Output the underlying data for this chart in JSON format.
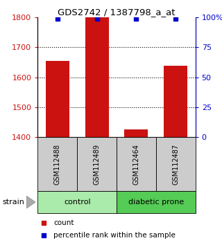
{
  "title": "GDS2742 / 1387798_a_at",
  "samples": [
    "GSM112488",
    "GSM112489",
    "GSM112464",
    "GSM112487"
  ],
  "counts": [
    1655,
    1800,
    1425,
    1638
  ],
  "percentiles": [
    99,
    99,
    99,
    99
  ],
  "ylim_left": [
    1400,
    1800
  ],
  "ylim_right": [
    0,
    100
  ],
  "yticks_left": [
    1400,
    1500,
    1600,
    1700,
    1800
  ],
  "yticks_right": [
    0,
    25,
    50,
    75,
    100
  ],
  "ytick_labels_right": [
    "0",
    "25",
    "50",
    "75",
    "100%"
  ],
  "bar_color": "#cc1111",
  "percentile_color": "#0000cc",
  "groups": [
    {
      "label": "control",
      "indices": [
        0,
        1
      ],
      "color": "#aaeaaa"
    },
    {
      "label": "diabetic prone",
      "indices": [
        2,
        3
      ],
      "color": "#55cc55"
    }
  ],
  "strain_label": "strain",
  "legend_count_label": "count",
  "legend_percentile_label": "percentile rank within the sample",
  "sample_box_color": "#cccccc",
  "gridline_color": "black",
  "gridline_style": ":"
}
